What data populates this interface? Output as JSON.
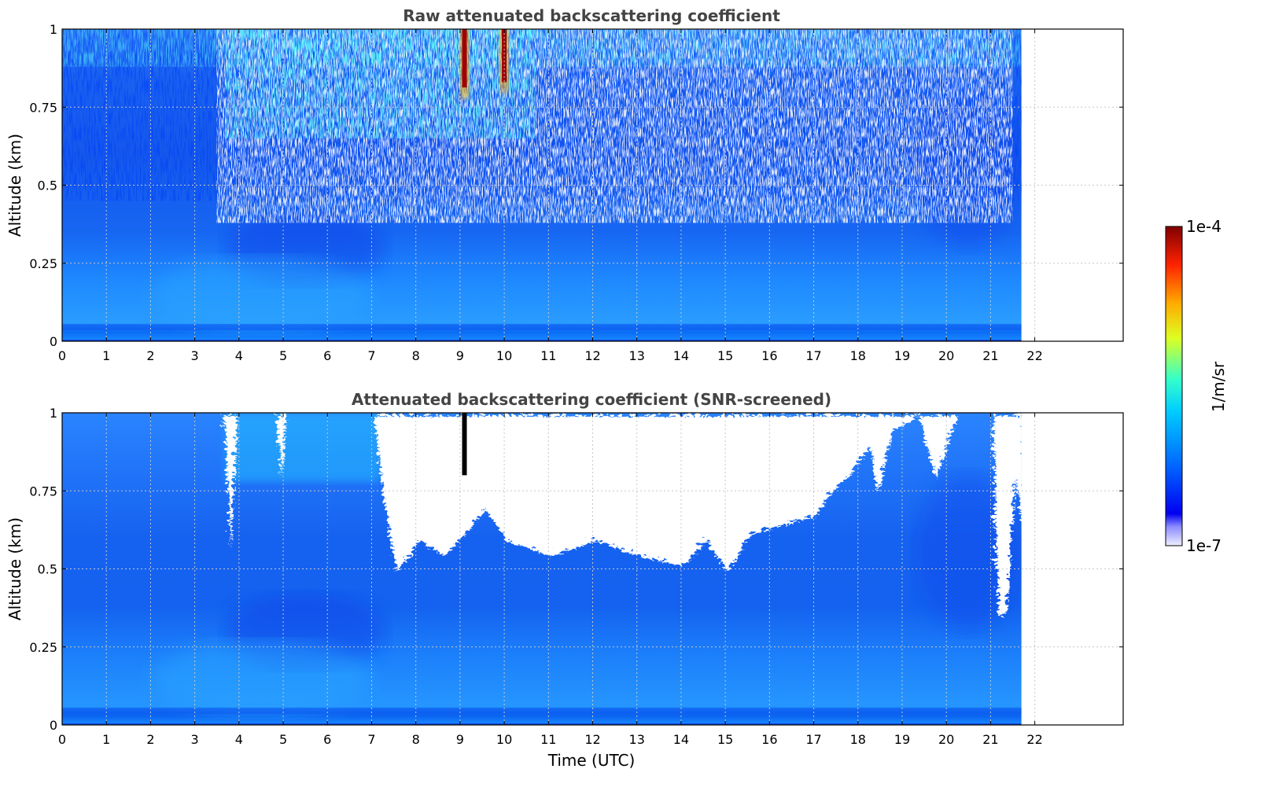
{
  "chart_data": [
    {
      "type": "heatmap",
      "title": "Raw attenuated backscattering coefficient",
      "xlabel": "",
      "ylabel": "Altitude (km)",
      "xlim": [
        0,
        24
      ],
      "ylim": [
        0,
        1
      ],
      "x_ticks": [
        "0",
        "1",
        "2",
        "3",
        "4",
        "5",
        "6",
        "7",
        "8",
        "9",
        "10",
        "11",
        "12",
        "13",
        "14",
        "15",
        "16",
        "17",
        "18",
        "19",
        "20",
        "21",
        "22"
      ],
      "y_ticks": [
        "0",
        "0.25",
        "0.5",
        "0.75",
        "1"
      ],
      "data_end_hour": 21.7,
      "grid": true,
      "colorscale": "jet",
      "screened": false,
      "features": [
        {
          "time": 9.1,
          "altitude_range": [
            0.78,
            1.0
          ],
          "level": "high"
        },
        {
          "time": 10.0,
          "altitude_range": [
            0.8,
            1.0
          ],
          "level": "high"
        }
      ]
    },
    {
      "type": "heatmap",
      "title": "Attenuated backscattering coefficient (SNR-screened)",
      "xlabel": "Time (UTC)",
      "ylabel": "Altitude (km)",
      "xlim": [
        0,
        24
      ],
      "ylim": [
        0,
        1
      ],
      "x_ticks": [
        "0",
        "1",
        "2",
        "3",
        "4",
        "5",
        "6",
        "7",
        "8",
        "9",
        "10",
        "11",
        "12",
        "13",
        "14",
        "15",
        "16",
        "17",
        "18",
        "19",
        "20",
        "21",
        "22"
      ],
      "y_ticks": [
        "0",
        "0.25",
        "0.5",
        "0.75",
        "1"
      ],
      "data_end_hour": 21.7,
      "grid": true,
      "colorscale": "jet",
      "screened": true,
      "screened_out_top_altitude_km": [
        [
          3.6,
          1.0
        ],
        [
          3.75,
          0.58
        ],
        [
          3.9,
          1.0
        ],
        [
          4.8,
          1.0
        ],
        [
          4.9,
          0.8
        ],
        [
          5.0,
          1.0
        ],
        [
          7.0,
          1.0
        ],
        [
          7.2,
          0.75
        ],
        [
          7.5,
          0.5
        ],
        [
          7.8,
          0.55
        ],
        [
          8.0,
          0.6
        ],
        [
          8.6,
          0.55
        ],
        [
          9.5,
          0.7
        ],
        [
          10.0,
          0.6
        ],
        [
          11.0,
          0.55
        ],
        [
          12.0,
          0.6
        ],
        [
          13.0,
          0.55
        ],
        [
          14.0,
          0.52
        ],
        [
          14.5,
          0.6
        ],
        [
          15.0,
          0.5
        ],
        [
          15.5,
          0.62
        ],
        [
          16.5,
          0.66
        ],
        [
          17.0,
          0.68
        ],
        [
          17.3,
          0.75
        ],
        [
          17.8,
          0.82
        ],
        [
          18.2,
          0.9
        ],
        [
          18.4,
          0.75
        ],
        [
          18.7,
          0.95
        ],
        [
          19.3,
          1.0
        ],
        [
          19.7,
          0.8
        ],
        [
          20.2,
          1.0
        ],
        [
          21.0,
          1.0
        ],
        [
          21.05,
          0.6
        ],
        [
          21.15,
          0.35
        ],
        [
          21.3,
          0.38
        ],
        [
          21.5,
          0.8
        ],
        [
          21.7,
          0.6
        ]
      ]
    }
  ],
  "colorbar": {
    "label": "1/m/sr",
    "max_label": "1e-4",
    "min_label": "1e-7",
    "scale": "log",
    "range": [
      1e-07,
      0.0001
    ]
  }
}
